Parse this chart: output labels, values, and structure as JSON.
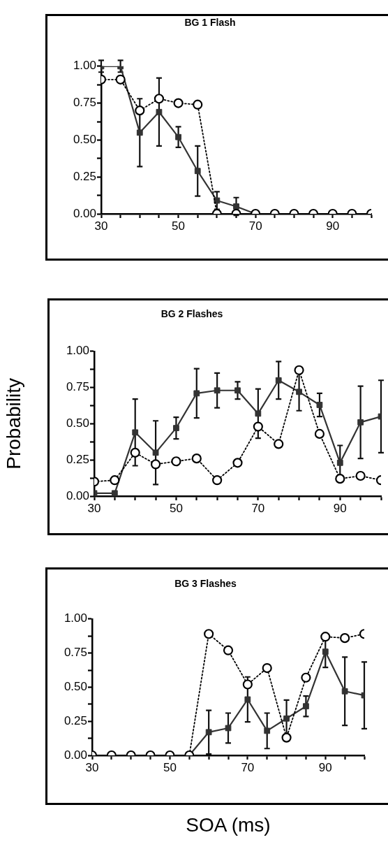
{
  "chart_data": [
    {
      "type": "line",
      "title": "BG 1 Flash",
      "x": [
        30,
        35,
        40,
        45,
        50,
        55,
        60,
        65,
        70,
        75,
        80,
        85,
        90,
        95,
        100
      ],
      "xlim": [
        30,
        100
      ],
      "xticks": [
        30,
        {
          "value": 35,
          "label": null
        },
        {
          "value": 40,
          "label": null
        },
        {
          "value": 45,
          "label": null
        },
        50,
        {
          "value": 55,
          "label": null
        },
        {
          "value": 60,
          "label": null
        },
        {
          "value": 65,
          "label": null
        },
        70,
        {
          "value": 75,
          "label": null
        },
        {
          "value": 80,
          "label": null
        },
        {
          "value": 85,
          "label": null
        },
        90,
        {
          "value": 95,
          "label": null
        },
        {
          "value": 100,
          "label": null
        }
      ],
      "ylim": [
        0,
        1
      ],
      "yticks": [
        {
          "value": 0,
          "label": "0.00"
        },
        {
          "value": 0.125,
          "label": null
        },
        {
          "value": 0.25,
          "label": "0.25"
        },
        {
          "value": 0.375,
          "label": null
        },
        {
          "value": 0.5,
          "label": "0.50"
        },
        {
          "value": 0.625,
          "label": null
        },
        {
          "value": 0.75,
          "label": "0.75"
        },
        {
          "value": 0.875,
          "label": null
        },
        {
          "value": 1,
          "label": "1.00"
        }
      ],
      "grid": false,
      "legend": false,
      "series": [
        {
          "color": "#333333",
          "marker": "square",
          "line_style": "solid",
          "values": [
            1.0,
            1.0,
            0.55,
            0.69,
            0.52,
            0.29,
            0.09,
            0.05,
            0,
            null,
            null,
            null,
            null,
            null,
            null
          ],
          "errors": [
            0.04,
            0.04,
            0.23,
            0.23,
            0.07,
            0.17,
            0.06,
            0.06,
            null,
            null,
            null,
            null,
            null,
            null,
            null
          ]
        },
        {
          "color": "#000000",
          "marker": "circle",
          "line_style": "dotted",
          "values": [
            0.91,
            0.91,
            0.7,
            0.78,
            0.75,
            0.74,
            0,
            0,
            0,
            0,
            0,
            0,
            0,
            0,
            0
          ]
        }
      ]
    },
    {
      "type": "line",
      "title": "BG 2 Flashes",
      "ylabel": "Probability",
      "x": [
        30,
        35,
        40,
        45,
        50,
        55,
        60,
        65,
        70,
        75,
        80,
        85,
        90,
        95,
        100
      ],
      "xlim": [
        30,
        100
      ],
      "xticks": [
        30,
        {
          "value": 35,
          "label": null
        },
        {
          "value": 40,
          "label": null
        },
        {
          "value": 45,
          "label": null
        },
        50,
        {
          "value": 55,
          "label": null
        },
        {
          "value": 60,
          "label": null
        },
        {
          "value": 65,
          "label": null
        },
        70,
        {
          "value": 75,
          "label": null
        },
        {
          "value": 80,
          "label": null
        },
        {
          "value": 85,
          "label": null
        },
        90,
        {
          "value": 95,
          "label": null
        },
        {
          "value": 100,
          "label": null
        }
      ],
      "ylim": [
        0,
        1
      ],
      "yticks": [
        {
          "value": 0,
          "label": "0.00"
        },
        {
          "value": 0.125,
          "label": null
        },
        {
          "value": 0.25,
          "label": "0.25"
        },
        {
          "value": 0.375,
          "label": null
        },
        {
          "value": 0.5,
          "label": "0.50"
        },
        {
          "value": 0.625,
          "label": null
        },
        {
          "value": 0.75,
          "label": "0.75"
        },
        {
          "value": 0.875,
          "label": null
        },
        {
          "value": 1,
          "label": "1.00"
        }
      ],
      "grid": false,
      "legend": false,
      "series": [
        {
          "color": "#333333",
          "marker": "square",
          "line_style": "solid",
          "values": [
            0.02,
            0.02,
            0.44,
            0.3,
            0.47,
            0.71,
            0.73,
            0.73,
            0.57,
            0.8,
            0.72,
            0.63,
            0.23,
            0.51,
            0.55
          ],
          "errors": [
            null,
            null,
            0.23,
            0.22,
            0.075,
            0.17,
            0.12,
            0.06,
            0.17,
            0.13,
            0.13,
            0.08,
            0.12,
            0.25,
            0.25
          ]
        },
        {
          "color": "#000000",
          "marker": "circle",
          "line_style": "dotted",
          "values": [
            0.1,
            0.11,
            0.3,
            0.22,
            0.24,
            0.26,
            0.11,
            0.23,
            0.48,
            0.36,
            0.87,
            0.43,
            0.12,
            0.14,
            0.11
          ]
        }
      ]
    },
    {
      "type": "line",
      "title": "BG 3 Flashes",
      "xlabel": "SOA (ms)",
      "x": [
        30,
        35,
        40,
        45,
        50,
        55,
        60,
        65,
        70,
        75,
        80,
        85,
        90,
        95,
        100
      ],
      "xlim": [
        30,
        100
      ],
      "xticks": [
        30,
        {
          "value": 35,
          "label": null
        },
        {
          "value": 40,
          "label": null
        },
        {
          "value": 45,
          "label": null
        },
        50,
        {
          "value": 55,
          "label": null
        },
        {
          "value": 60,
          "label": null
        },
        {
          "value": 65,
          "label": null
        },
        70,
        {
          "value": 75,
          "label": null
        },
        {
          "value": 80,
          "label": null
        },
        {
          "value": 85,
          "label": null
        },
        90,
        {
          "value": 95,
          "label": null
        },
        {
          "value": 100,
          "label": null
        }
      ],
      "ylim": [
        0,
        1
      ],
      "yticks": [
        {
          "value": 0,
          "label": "0.00"
        },
        {
          "value": 0.125,
          "label": null
        },
        {
          "value": 0.25,
          "label": "0.25"
        },
        {
          "value": 0.375,
          "label": null
        },
        {
          "value": 0.5,
          "label": "0.50"
        },
        {
          "value": 0.625,
          "label": null
        },
        {
          "value": 0.75,
          "label": "0.75"
        },
        {
          "value": 0.875,
          "label": null
        },
        {
          "value": 1,
          "label": "1.00"
        }
      ],
      "grid": false,
      "legend": false,
      "series": [
        {
          "color": "#333333",
          "marker": "square",
          "line_style": "solid",
          "values": [
            null,
            null,
            null,
            null,
            null,
            0,
            0.17,
            0.2,
            0.41,
            0.18,
            0.27,
            0.36,
            0.76,
            0.47,
            0.44
          ],
          "errors": [
            null,
            null,
            null,
            null,
            null,
            null,
            0.16,
            0.11,
            0.165,
            0.13,
            0.135,
            0.075,
            0.115,
            0.25,
            0.245
          ]
        },
        {
          "color": "#000000",
          "marker": "circle",
          "line_style": "dotted",
          "values": [
            0,
            0,
            0,
            0,
            0,
            0,
            0.89,
            0.77,
            0.52,
            0.64,
            0.13,
            0.57,
            0.87,
            0.86,
            0.89
          ]
        }
      ]
    }
  ]
}
